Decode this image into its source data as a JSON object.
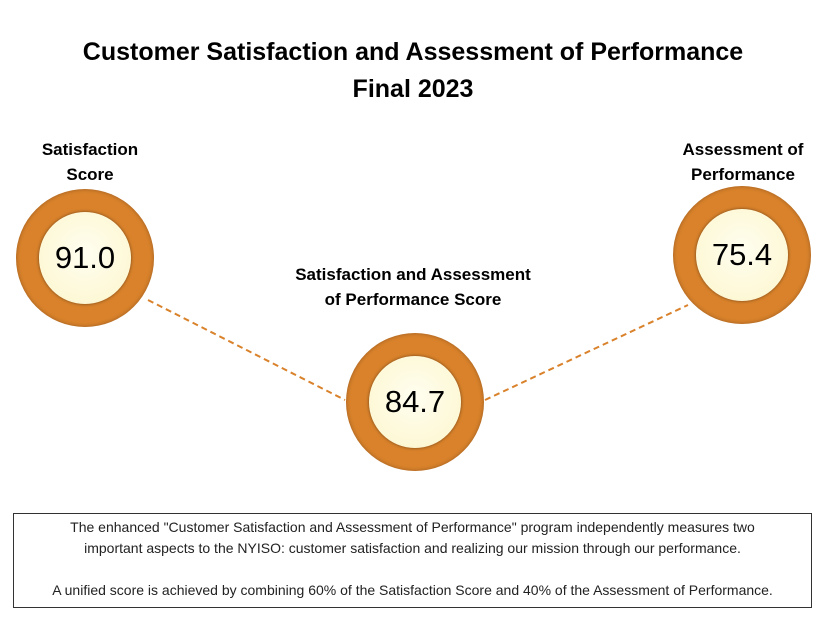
{
  "title": {
    "line1": "Customer Satisfaction and Assessment of Performance",
    "line2": "Final 2023"
  },
  "scores": [
    {
      "label_line1": "Satisfaction",
      "label_line2": "Score",
      "value": "91.0"
    },
    {
      "label_line1": "Satisfaction and Assessment",
      "label_line2": "of Performance Score",
      "value": "84.7"
    },
    {
      "label_line1": "Assessment of",
      "label_line2": "Performance",
      "value": "75.4"
    }
  ],
  "note": {
    "line1": "The enhanced \"Customer Satisfaction and Assessment of Performance\" program independently measures two",
    "line2": "important aspects to the NYISO: customer satisfaction and realizing our mission through our performance.",
    "line3": "A unified score is achieved by combining 60% of the Satisfaction Score and 40% of the Assessment of Performance."
  },
  "colors": {
    "ring": "#d9822b",
    "fill": "#fdf8d6"
  }
}
